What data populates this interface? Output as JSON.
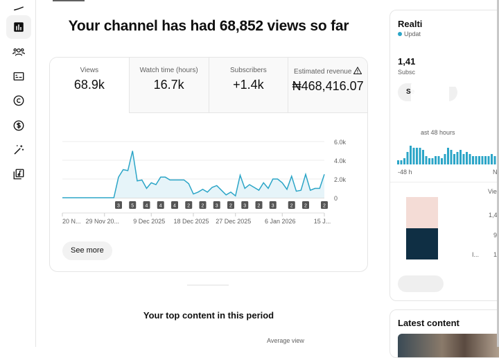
{
  "sidebar": {
    "items": [
      {
        "icon": "content-icon",
        "active": false
      },
      {
        "icon": "analytics-icon",
        "active": true
      },
      {
        "icon": "community-icon",
        "active": false
      },
      {
        "icon": "subtitles-icon",
        "active": false
      },
      {
        "icon": "copyright-icon",
        "active": false
      },
      {
        "icon": "earn-icon",
        "active": false
      },
      {
        "icon": "customization-icon",
        "active": false
      },
      {
        "icon": "audio-library-icon",
        "active": false
      }
    ]
  },
  "header": {
    "title": "Your channel has had 68,852 views so far"
  },
  "metrics": [
    {
      "label": "Views",
      "value": "68.9k"
    },
    {
      "label": "Watch time (hours)",
      "value": "16.7k"
    },
    {
      "label": "Subscribers",
      "value": "+1.4k"
    },
    {
      "label": "Estimated revenue",
      "value": "₦468,416.07",
      "icon": "warning-icon"
    }
  ],
  "see_more": "See more",
  "accent": "#2ba5c7",
  "chart_data": {
    "type": "area",
    "x_start": "20 Nov 2025",
    "values": [
      0,
      0,
      0,
      0,
      0,
      0,
      0,
      0,
      0,
      0,
      0,
      0,
      2200,
      3000,
      2900,
      5000,
      1800,
      1900,
      1000,
      1600,
      1400,
      2200,
      2200,
      1900,
      1900,
      1900,
      1900,
      1500,
      400,
      600,
      900,
      600,
      1100,
      1300,
      800,
      300,
      600,
      200,
      2400,
      1000,
      1400,
      1100,
      800,
      1600,
      1000,
      2000,
      2000,
      1600,
      900,
      2300,
      700,
      800,
      2500,
      800,
      1000,
      1000,
      2500
    ],
    "ylim": [
      0,
      6000
    ],
    "yticks": [
      "0",
      "2.0k",
      "4.0k",
      "6.0k"
    ],
    "yticks_values": [
      0,
      2000,
      4000,
      6000
    ],
    "xticks": [
      {
        "index": 0,
        "label": "20 N..."
      },
      {
        "index": 9,
        "label": "29 Nov 20..."
      },
      {
        "index": 19,
        "label": "9 Dec 2025"
      },
      {
        "index": 28,
        "label": "18 Dec 2025"
      },
      {
        "index": 37,
        "label": "27 Dec 2025"
      },
      {
        "index": 47,
        "label": "6 Jan 2026"
      },
      {
        "index": 56,
        "label": "15 J..."
      }
    ],
    "markers": [
      {
        "index": 12,
        "label": "3"
      },
      {
        "index": 15,
        "label": "5"
      },
      {
        "index": 18,
        "label": "4"
      },
      {
        "index": 21,
        "label": "4"
      },
      {
        "index": 24,
        "label": "4"
      },
      {
        "index": 27,
        "label": "2"
      },
      {
        "index": 30,
        "label": "2"
      },
      {
        "index": 33,
        "label": "3"
      },
      {
        "index": 36,
        "label": "2"
      },
      {
        "index": 39,
        "label": "3"
      },
      {
        "index": 42,
        "label": "2"
      },
      {
        "index": 45,
        "label": "3"
      },
      {
        "index": 49,
        "label": "2"
      },
      {
        "index": 52,
        "label": "2"
      },
      {
        "index": 56,
        "label": "2"
      }
    ],
    "grid": true
  },
  "top_content": {
    "title": "Your top content in this period",
    "col_avg_view": "Average view"
  },
  "realtime": {
    "title": "Realti",
    "updating": "Updat",
    "subs_value": "1,41",
    "subs_label": "Subsc",
    "see_btn": "Se",
    "last48": "ast 48 hours",
    "x_left": "-48 h",
    "x_right": "N",
    "bars": [
      2,
      2,
      3,
      6,
      9,
      8,
      8,
      8,
      7,
      4,
      3,
      3,
      4,
      4,
      3,
      5,
      8,
      7,
      5,
      6,
      7,
      5,
      6,
      5,
      4,
      4,
      4,
      4,
      4,
      4,
      5,
      4,
      4
    ],
    "col_header": "Vie",
    "rows": [
      "1,4",
      "9",
      "1"
    ],
    "row_label": "I...",
    "colors": [
      "#f4dcd6",
      "#0f2f44"
    ]
  },
  "latest": {
    "title": "Latest content"
  }
}
